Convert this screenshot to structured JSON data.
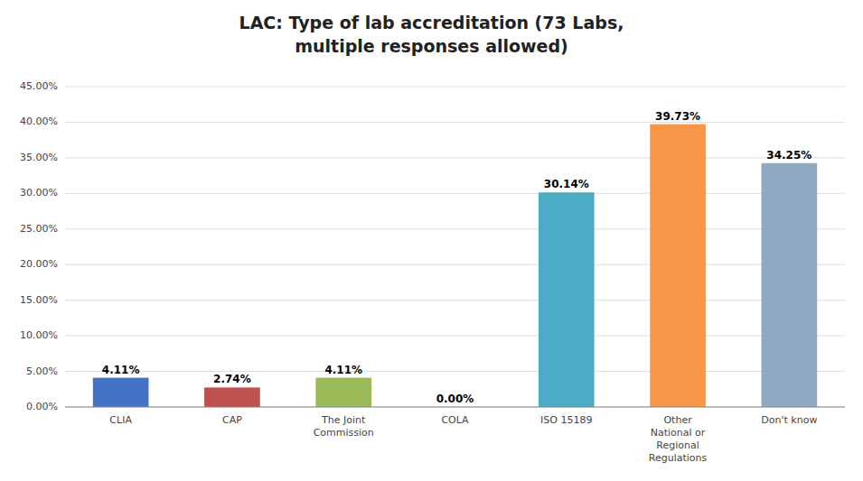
{
  "chart_data": {
    "type": "bar",
    "title": "LAC: Type of lab accreditation (73 Labs,\nmultiple responses allowed)",
    "categories": [
      "CLIA",
      "CAP",
      "The Joint\nCommission",
      "COLA",
      "ISO 15189",
      "Other\nNational or\nRegional\nRegulations",
      "Don't know"
    ],
    "values": [
      0.0411,
      0.0274,
      0.0411,
      0.0,
      0.3014,
      0.3973,
      0.3425
    ],
    "value_labels": [
      "4.11%",
      "2.74%",
      "4.11%",
      "0.00%",
      "30.14%",
      "39.73%",
      "34.25%"
    ],
    "data_labels": true,
    "colors": [
      "#4472C4",
      "#C0504D",
      "#9BBB59",
      "#9BBB59",
      "#4BACC6",
      "#F79646",
      "#8EA9C1"
    ],
    "ylim": [
      0,
      0.45
    ],
    "yticks": [
      {
        "value": 0.0,
        "label": "0.00%"
      },
      {
        "value": 0.05,
        "label": "5.00%"
      },
      {
        "value": 0.1,
        "label": "10.00%"
      },
      {
        "value": 0.15,
        "label": "15.00%"
      },
      {
        "value": 0.2,
        "label": "20.00%"
      },
      {
        "value": 0.25,
        "label": "25.00%"
      },
      {
        "value": 0.3,
        "label": "30.00%"
      },
      {
        "value": 0.35,
        "label": "35.00%"
      },
      {
        "value": 0.4,
        "label": "40.00%"
      },
      {
        "value": 0.45,
        "label": "45.00%"
      }
    ],
    "grid": true
  }
}
